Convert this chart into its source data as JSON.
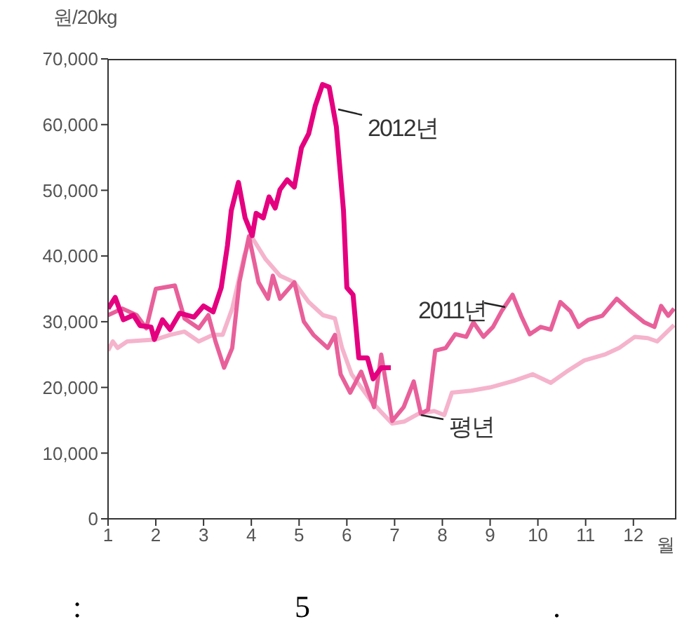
{
  "chart_data": {
    "type": "line",
    "ylabel": "원/20kg",
    "xlabel": "월",
    "xlim": [
      1,
      12.9
    ],
    "xticks": [
      1,
      2,
      3,
      4,
      5,
      6,
      7,
      8,
      9,
      10,
      11,
      12
    ],
    "ylim": [
      0,
      70000
    ],
    "yticks": [
      0,
      {
        "value": 10000,
        "label": "10,000"
      },
      {
        "value": 20000,
        "label": "20,000"
      },
      {
        "value": 30000,
        "label": "30,000"
      },
      {
        "value": 40000,
        "label": "40,000"
      },
      {
        "value": 50000,
        "label": "50,000"
      },
      {
        "value": 60000,
        "label": "60,000"
      },
      {
        "value": 70000,
        "label": "70,000"
      }
    ],
    "marker": "none",
    "line_style": "solid",
    "annotations": [
      ":",
      "5",
      "."
    ],
    "series": [
      {
        "name": "평년",
        "color": "#f5b3cc",
        "x": [
          1.0,
          1.1,
          1.2,
          1.4,
          2.0,
          2.3,
          2.6,
          2.9,
          3.2,
          3.4,
          3.6,
          3.85,
          4.0,
          4.3,
          4.6,
          4.9,
          5.2,
          5.5,
          5.75,
          5.9,
          6.1,
          6.3,
          6.5,
          6.7,
          6.95,
          7.2,
          7.5,
          7.83,
          8.04,
          8.2,
          8.6,
          9.0,
          9.5,
          9.89,
          10.27,
          10.6,
          10.97,
          11.4,
          11.7,
          12.03,
          12.3,
          12.5,
          12.85
        ],
        "values": [
          25600,
          27000,
          26000,
          27000,
          27300,
          28000,
          28500,
          27000,
          28000,
          28000,
          32000,
          40000,
          43000,
          39500,
          37000,
          36000,
          33000,
          31000,
          30500,
          26000,
          22000,
          20000,
          18000,
          16400,
          14500,
          14800,
          16000,
          16400,
          15800,
          19200,
          19500,
          20000,
          21000,
          22000,
          20700,
          22400,
          24100,
          25000,
          26000,
          27700,
          27500,
          27000,
          29500
        ]
      },
      {
        "name": "2011년",
        "color": "#e8609a",
        "x": [
          1.0,
          1.3,
          1.6,
          1.8,
          2.0,
          2.4,
          2.6,
          2.9,
          3.1,
          3.25,
          3.43,
          3.6,
          3.75,
          3.95,
          4.15,
          4.35,
          4.45,
          4.6,
          4.9,
          5.1,
          5.3,
          5.6,
          5.75,
          5.87,
          6.07,
          6.3,
          6.57,
          6.72,
          6.95,
          7.19,
          7.4,
          7.55,
          7.7,
          7.85,
          8.07,
          8.27,
          8.5,
          8.65,
          8.86,
          9.06,
          9.24,
          9.47,
          9.65,
          9.83,
          10.06,
          10.27,
          10.47,
          10.68,
          10.85,
          11.06,
          11.35,
          11.65,
          11.94,
          12.23,
          12.44,
          12.58,
          12.73,
          12.85
        ],
        "values": [
          31000,
          32000,
          31000,
          29000,
          35000,
          35500,
          30500,
          29000,
          31000,
          27000,
          23000,
          26000,
          36000,
          43000,
          36000,
          33500,
          37000,
          33500,
          36000,
          30000,
          28000,
          26000,
          28000,
          22000,
          19200,
          22400,
          17000,
          25000,
          14900,
          17000,
          20900,
          16000,
          16600,
          25600,
          26000,
          28100,
          27700,
          29900,
          27700,
          29200,
          31600,
          34100,
          30900,
          28100,
          29200,
          28800,
          33000,
          31600,
          29200,
          30300,
          30900,
          33500,
          31600,
          29900,
          29200,
          32400,
          30900,
          32000
        ]
      },
      {
        "name": "2012년",
        "color": "#e4007f",
        "x": [
          1.0,
          1.15,
          1.32,
          1.53,
          1.67,
          1.9,
          1.97,
          2.14,
          2.3,
          2.5,
          2.8,
          3.0,
          3.2,
          3.37,
          3.5,
          3.58,
          3.73,
          3.87,
          4.02,
          4.1,
          4.25,
          4.37,
          4.5,
          4.6,
          4.75,
          4.9,
          5.05,
          5.2,
          5.34,
          5.49,
          5.63,
          5.78,
          5.93,
          6.0,
          6.13,
          6.25,
          6.43,
          6.55,
          6.72,
          6.92
        ],
        "values": [
          32000,
          33700,
          30300,
          31000,
          29400,
          29200,
          27300,
          30300,
          28800,
          31300,
          30700,
          32400,
          31500,
          35200,
          41600,
          46900,
          51200,
          45800,
          43100,
          46500,
          45800,
          49000,
          47300,
          50100,
          51600,
          50500,
          56500,
          58600,
          62900,
          66100,
          65700,
          59700,
          46900,
          35200,
          34100,
          24500,
          24500,
          21300,
          23000,
          23000
        ]
      }
    ]
  }
}
